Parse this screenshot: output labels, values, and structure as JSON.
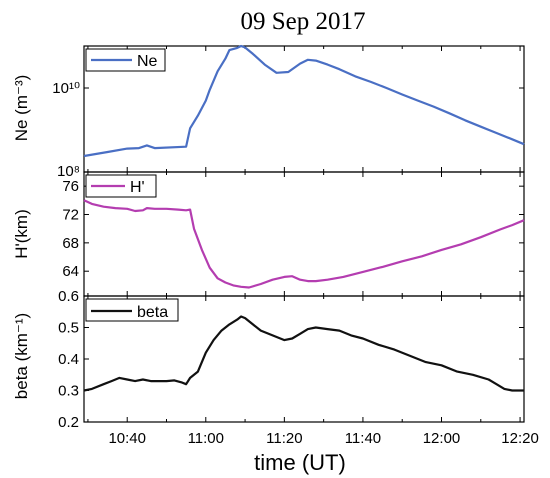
{
  "figure": {
    "title": "09 Sep 2017",
    "xlabel": "time (UT)",
    "x_ticks": [
      "10:40",
      "11:00",
      "11:20",
      "11:40",
      "12:00",
      "12:20"
    ]
  },
  "chart_data": [
    {
      "type": "line",
      "panel": "Ne",
      "ylabel": "Ne (m⁻³)",
      "y_scale": "log",
      "ylim": [
        100000000.0,
        100000000000.0
      ],
      "y_ticks": [
        "10¹⁰",
        "10⁸"
      ],
      "legend_position": "top-left",
      "series": [
        {
          "name": "Ne",
          "color": "#4a6fc4",
          "x": [
            "10:29",
            "10:35",
            "10:40",
            "10:43",
            "10:45",
            "10:47",
            "10:55",
            "10:56",
            "10:58",
            "11:00",
            "11:01",
            "11:03",
            "11:05",
            "11:06",
            "11:08",
            "11:09",
            "11:10",
            "11:12",
            "11:15",
            "11:18",
            "11:21",
            "11:24",
            "11:26",
            "11:28",
            "11:31",
            "11:34",
            "11:38",
            "11:42",
            "11:46",
            "11:50",
            "11:54",
            "11:58",
            "12:02",
            "12:06",
            "12:10",
            "12:14",
            "12:18",
            "12:21"
          ],
          "values": [
            240000000.0,
            300000000.0,
            360000000.0,
            370000000.0,
            430000000.0,
            370000000.0,
            400000000.0,
            1100000000.0,
            2200000000.0,
            5000000000.0,
            9000000000.0,
            25000000000.0,
            50000000000.0,
            80000000000.0,
            90000000000.0,
            100000000000.0,
            92000000000.0,
            65000000000.0,
            36000000000.0,
            23000000000.0,
            24000000000.0,
            38000000000.0,
            47000000000.0,
            45000000000.0,
            36000000000.0,
            28000000000.0,
            19000000000.0,
            14000000000.0,
            10000000000.0,
            7000000000.0,
            5000000000.0,
            3600000000.0,
            2500000000.0,
            1700000000.0,
            1200000000.0,
            850000000.0,
            600000000.0,
            460000000.0
          ]
        }
      ]
    },
    {
      "type": "line",
      "panel": "H'",
      "ylabel": "H'(km)",
      "ylim": [
        60.5,
        78
      ],
      "y_ticks": [
        76,
        72,
        68,
        64
      ],
      "legend_position": "top-left",
      "series": [
        {
          "name": "H'",
          "color": "#b43db0",
          "x": [
            "10:29",
            "10:31",
            "10:34",
            "10:37",
            "10:40",
            "10:42",
            "10:44",
            "10:45",
            "10:47",
            "10:50",
            "10:53",
            "10:55",
            "10:56",
            "10:57",
            "10:59",
            "11:01",
            "11:03",
            "11:05",
            "11:07",
            "11:09",
            "11:11",
            "11:14",
            "11:17",
            "11:20",
            "11:22",
            "11:24",
            "11:26",
            "11:28",
            "11:31",
            "11:35",
            "11:40",
            "11:45",
            "11:50",
            "11:55",
            "12:00",
            "12:05",
            "12:10",
            "12:15",
            "12:18",
            "12:21"
          ],
          "values": [
            74.0,
            73.5,
            73.1,
            72.9,
            72.8,
            72.5,
            72.6,
            72.9,
            72.8,
            72.8,
            72.7,
            72.6,
            72.7,
            70.0,
            67.0,
            64.5,
            63.0,
            62.4,
            62.0,
            61.8,
            61.7,
            62.2,
            62.8,
            63.2,
            63.3,
            62.8,
            62.6,
            62.6,
            62.8,
            63.2,
            63.9,
            64.6,
            65.4,
            66.1,
            67.0,
            67.8,
            68.8,
            69.9,
            70.5,
            71.2
          ]
        }
      ]
    },
    {
      "type": "line",
      "panel": "beta",
      "ylabel": "beta (km⁻¹)",
      "ylim": [
        0.2,
        0.6
      ],
      "y_ticks": [
        0.6,
        0.5,
        0.4,
        0.3,
        0.2
      ],
      "legend_position": "top-left",
      "series": [
        {
          "name": "beta",
          "color": "#111111",
          "x": [
            "10:29",
            "10:31",
            "10:34",
            "10:36",
            "10:38",
            "10:40",
            "10:42",
            "10:44",
            "10:46",
            "10:48",
            "10:50",
            "10:52",
            "10:54",
            "10:55",
            "10:56",
            "10:58",
            "11:00",
            "11:02",
            "11:04",
            "11:06",
            "11:08",
            "11:09",
            "11:10",
            "11:12",
            "11:14",
            "11:17",
            "11:20",
            "11:22",
            "11:24",
            "11:26",
            "11:28",
            "11:31",
            "11:34",
            "11:37",
            "11:40",
            "11:44",
            "11:48",
            "11:52",
            "11:56",
            "12:00",
            "12:04",
            "12:08",
            "12:12",
            "12:14",
            "12:16",
            "12:18",
            "12:21"
          ],
          "values": [
            0.3,
            0.305,
            0.32,
            0.33,
            0.34,
            0.335,
            0.33,
            0.335,
            0.33,
            0.33,
            0.33,
            0.332,
            0.325,
            0.32,
            0.34,
            0.36,
            0.42,
            0.46,
            0.49,
            0.51,
            0.525,
            0.535,
            0.53,
            0.51,
            0.49,
            0.475,
            0.46,
            0.465,
            0.48,
            0.495,
            0.5,
            0.495,
            0.49,
            0.475,
            0.465,
            0.445,
            0.43,
            0.41,
            0.39,
            0.38,
            0.36,
            0.35,
            0.335,
            0.32,
            0.305,
            0.3,
            0.3
          ]
        }
      ]
    }
  ]
}
